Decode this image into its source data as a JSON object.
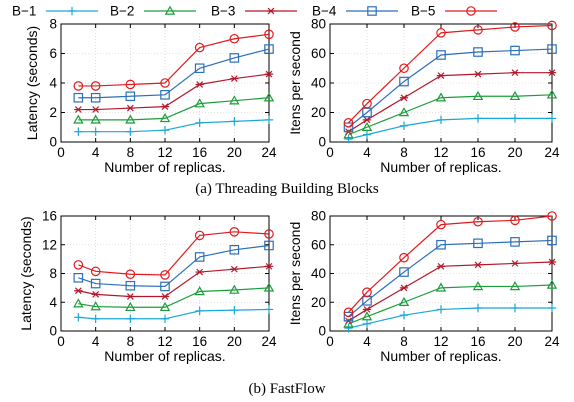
{
  "legend": {
    "entries": [
      {
        "name": "B−1",
        "color": "#1aa7d8",
        "marker": "plus"
      },
      {
        "name": "B−2",
        "color": "#1b9e3a",
        "marker": "triangle"
      },
      {
        "name": "B−3",
        "color": "#b2182b",
        "marker": "star"
      },
      {
        "name": "B−4",
        "color": "#2c6fb8",
        "marker": "square"
      },
      {
        "name": "B−5",
        "color": "#e31a1c",
        "marker": "circle"
      }
    ]
  },
  "captions": {
    "a": "(a) Threading Building Blocks",
    "b": "(b) FastFlow"
  },
  "chart_data": [
    {
      "id": "tbb-latency",
      "type": "line",
      "xlabel": "Number of replicas.",
      "ylabel": "Latency (seconds)",
      "x": [
        2,
        4,
        8,
        12,
        16,
        20,
        24
      ],
      "xticks": [
        0,
        4,
        8,
        12,
        16,
        20,
        24
      ],
      "xlim": [
        0,
        24
      ],
      "ylim": [
        0,
        8
      ],
      "yticks": [
        0,
        2,
        4,
        6,
        8
      ],
      "grid": true,
      "series": [
        {
          "name": "B−1",
          "values": [
            0.7,
            0.7,
            0.7,
            0.8,
            1.3,
            1.4,
            1.5
          ]
        },
        {
          "name": "B−2",
          "values": [
            1.5,
            1.5,
            1.5,
            1.6,
            2.6,
            2.8,
            3.0
          ]
        },
        {
          "name": "B−3",
          "values": [
            2.2,
            2.2,
            2.3,
            2.4,
            3.9,
            4.3,
            4.6
          ]
        },
        {
          "name": "B−4",
          "values": [
            3.0,
            3.0,
            3.1,
            3.2,
            5.0,
            5.7,
            6.3
          ]
        },
        {
          "name": "B−5",
          "values": [
            3.8,
            3.8,
            3.9,
            4.0,
            6.4,
            7.0,
            7.3
          ]
        }
      ]
    },
    {
      "id": "tbb-throughput",
      "type": "line",
      "xlabel": "Number of replicas.",
      "ylabel": "Itens per second",
      "x": [
        2,
        4,
        8,
        12,
        16,
        20,
        24
      ],
      "xticks": [
        0,
        4,
        8,
        12,
        16,
        20,
        24
      ],
      "xlim": [
        0,
        24
      ],
      "ylim": [
        0,
        80
      ],
      "yticks": [
        0,
        20,
        40,
        60,
        80
      ],
      "grid": true,
      "series": [
        {
          "name": "B−1",
          "values": [
            2,
            5,
            11,
            15,
            16,
            16,
            16
          ]
        },
        {
          "name": "B−2",
          "values": [
            5,
            10,
            20,
            30,
            31,
            31,
            32
          ]
        },
        {
          "name": "B−3",
          "values": [
            7,
            15,
            30,
            45,
            46,
            47,
            47
          ]
        },
        {
          "name": "B−4",
          "values": [
            10,
            20,
            41,
            59,
            61,
            62,
            63
          ]
        },
        {
          "name": "B−5",
          "values": [
            13,
            26,
            50,
            74,
            76,
            78,
            79
          ]
        }
      ]
    },
    {
      "id": "ff-latency",
      "type": "line",
      "xlabel": "Number of replicas.",
      "ylabel": "Latency (seconds)",
      "x": [
        2,
        4,
        8,
        12,
        16,
        20,
        24
      ],
      "xticks": [
        0,
        4,
        8,
        12,
        16,
        20,
        24
      ],
      "xlim": [
        0,
        24
      ],
      "ylim": [
        0,
        16
      ],
      "yticks": [
        0,
        4,
        8,
        12,
        16
      ],
      "grid": true,
      "series": [
        {
          "name": "B−1",
          "values": [
            1.9,
            1.7,
            1.7,
            1.7,
            2.8,
            2.9,
            3.0
          ]
        },
        {
          "name": "B−2",
          "values": [
            3.8,
            3.4,
            3.3,
            3.3,
            5.5,
            5.7,
            6.0
          ]
        },
        {
          "name": "B−3",
          "values": [
            5.6,
            5.1,
            4.8,
            4.8,
            8.2,
            8.6,
            9.0
          ]
        },
        {
          "name": "B−4",
          "values": [
            7.4,
            6.6,
            6.3,
            6.2,
            10.3,
            11.3,
            11.9
          ]
        },
        {
          "name": "B−5",
          "values": [
            9.2,
            8.3,
            7.9,
            7.8,
            13.3,
            13.8,
            13.5
          ]
        }
      ]
    },
    {
      "id": "ff-throughput",
      "type": "line",
      "xlabel": "Number of replicas.",
      "ylabel": "Itens per second",
      "x": [
        2,
        4,
        8,
        12,
        16,
        20,
        24
      ],
      "xticks": [
        0,
        4,
        8,
        12,
        16,
        20,
        24
      ],
      "xlim": [
        0,
        24
      ],
      "ylim": [
        0,
        80
      ],
      "yticks": [
        0,
        20,
        40,
        60,
        80
      ],
      "grid": true,
      "series": [
        {
          "name": "B−1",
          "values": [
            2,
            5,
            11,
            15,
            16,
            16,
            16
          ]
        },
        {
          "name": "B−2",
          "values": [
            5,
            10,
            20,
            30,
            31,
            31,
            32
          ]
        },
        {
          "name": "B−3",
          "values": [
            7,
            15,
            30,
            45,
            46,
            47,
            48
          ]
        },
        {
          "name": "B−4",
          "values": [
            10,
            21,
            41,
            60,
            61,
            62,
            63
          ]
        },
        {
          "name": "B−5",
          "values": [
            13,
            27,
            51,
            74,
            76,
            77,
            80
          ]
        }
      ]
    }
  ]
}
